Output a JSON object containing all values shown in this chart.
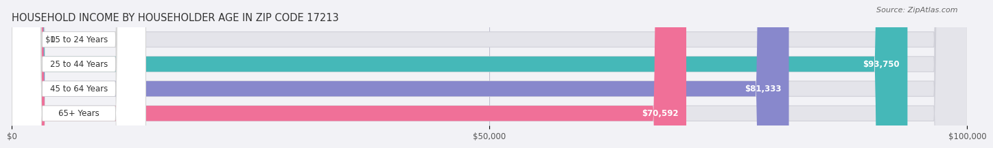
{
  "title": "HOUSEHOLD INCOME BY HOUSEHOLDER AGE IN ZIP CODE 17213",
  "source": "Source: ZipAtlas.com",
  "categories": [
    "15 to 24 Years",
    "25 to 44 Years",
    "45 to 64 Years",
    "65+ Years"
  ],
  "values": [
    0,
    93750,
    81333,
    70592
  ],
  "labels": [
    "$0",
    "$93,750",
    "$81,333",
    "$70,592"
  ],
  "bar_colors": [
    "#c9a0dc",
    "#45b8b8",
    "#8888cc",
    "#f07098"
  ],
  "background_color": "#f2f2f6",
  "bar_bg_color": "#e4e4ea",
  "xlim": [
    0,
    100000
  ],
  "xticklabels": [
    "$0",
    "$50,000",
    "$100,000"
  ],
  "bar_height": 0.62,
  "label_fontsize": 8.5,
  "title_fontsize": 10.5,
  "tick_fontsize": 8.5,
  "source_fontsize": 8,
  "cat_label_fontsize": 8.5
}
